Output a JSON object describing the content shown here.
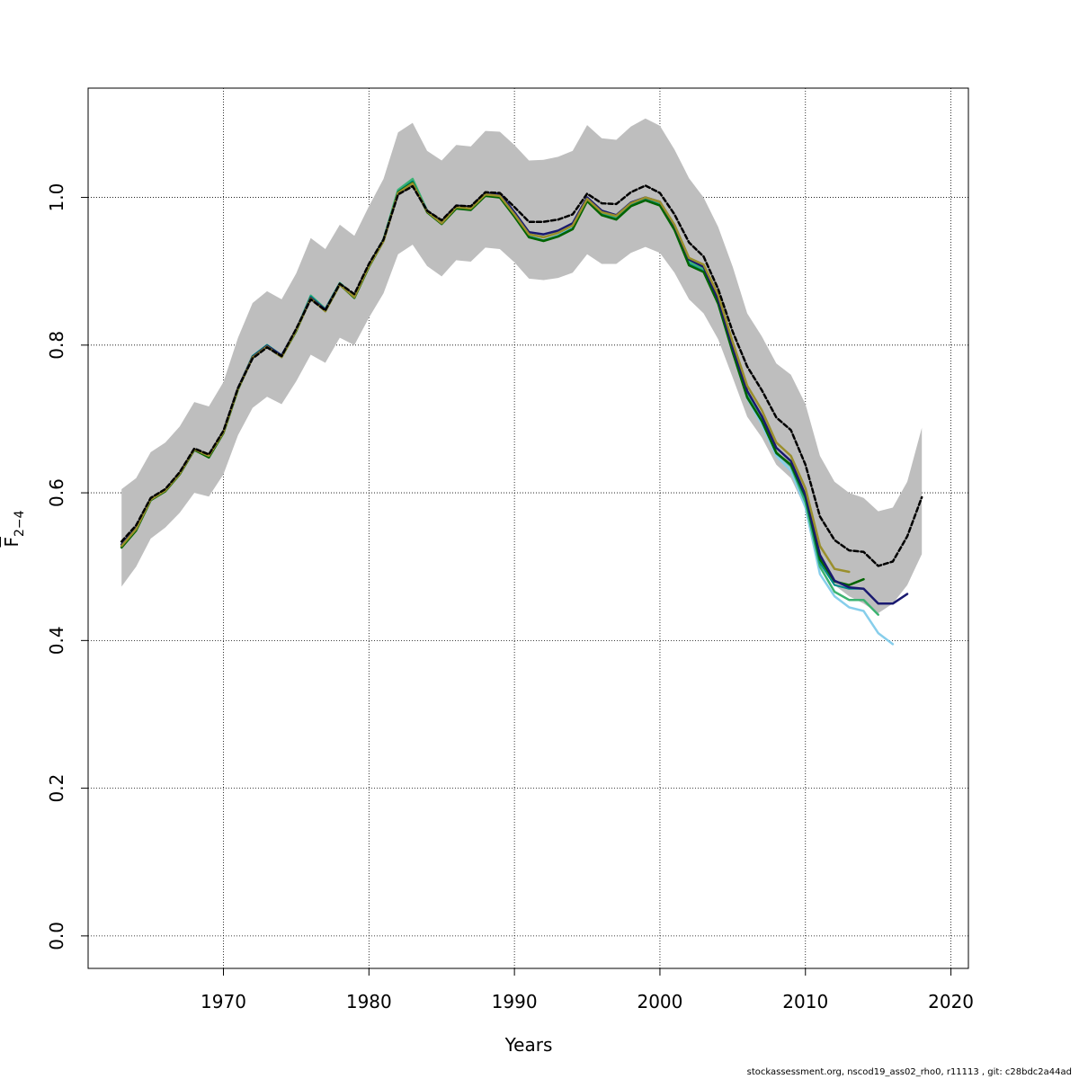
{
  "chart_data": {
    "type": "line",
    "title": "",
    "xlabel": "Years",
    "ylabel_main": "F",
    "ylabel_sub": "2−4",
    "xlim": [
      1960.7,
      2021.2
    ],
    "ylim": [
      -0.044,
      1.148
    ],
    "xticks": [
      1970,
      1980,
      1990,
      2000,
      2010,
      2020
    ],
    "yticks": [
      0.0,
      0.2,
      0.4,
      0.6,
      0.8,
      1.0
    ],
    "ytick_labels": [
      "0.0",
      "0.2",
      "0.4",
      "0.6",
      "0.8",
      "1.0"
    ],
    "grid": true,
    "legend": "none",
    "band": {
      "color": "#bebebe",
      "x": [
        1963,
        1964,
        1965,
        1966,
        1967,
        1968,
        1969,
        1970,
        1971,
        1972,
        1973,
        1974,
        1975,
        1976,
        1977,
        1978,
        1979,
        1980,
        1981,
        1982,
        1983,
        1984,
        1985,
        1986,
        1987,
        1988,
        1989,
        1990,
        1991,
        1992,
        1993,
        1994,
        1995,
        1996,
        1997,
        1998,
        1999,
        2000,
        2001,
        2002,
        2003,
        2004,
        2005,
        2006,
        2007,
        2008,
        2009,
        2010,
        2011,
        2012,
        2013,
        2014,
        2015,
        2016,
        2017,
        2018
      ],
      "upper": [
        0.605,
        0.62,
        0.655,
        0.668,
        0.69,
        0.723,
        0.717,
        0.75,
        0.81,
        0.857,
        0.873,
        0.862,
        0.897,
        0.945,
        0.93,
        0.963,
        0.948,
        0.988,
        1.025,
        1.088,
        1.101,
        1.063,
        1.05,
        1.071,
        1.069,
        1.09,
        1.089,
        1.071,
        1.05,
        1.051,
        1.055,
        1.063,
        1.098,
        1.08,
        1.078,
        1.096,
        1.107,
        1.097,
        1.065,
        1.026,
        1.0,
        0.96,
        0.906,
        0.843,
        0.812,
        0.775,
        0.76,
        0.72,
        0.65,
        0.615,
        0.6,
        0.593,
        0.575,
        0.58,
        0.615,
        0.688
      ],
      "lower": [
        0.473,
        0.5,
        0.538,
        0.553,
        0.573,
        0.6,
        0.595,
        0.625,
        0.678,
        0.715,
        0.73,
        0.72,
        0.751,
        0.787,
        0.776,
        0.81,
        0.8,
        0.837,
        0.87,
        0.923,
        0.936,
        0.907,
        0.893,
        0.915,
        0.913,
        0.932,
        0.93,
        0.912,
        0.89,
        0.888,
        0.891,
        0.898,
        0.923,
        0.91,
        0.91,
        0.925,
        0.933,
        0.925,
        0.898,
        0.862,
        0.843,
        0.808,
        0.756,
        0.703,
        0.675,
        0.638,
        0.62,
        0.578,
        0.51,
        0.475,
        0.46,
        0.45,
        0.437,
        0.45,
        0.475,
        0.517
      ]
    },
    "series": [
      {
        "color": "#87ceeb",
        "dashed": false,
        "width": 2.5,
        "x": [
          1963,
          1964,
          1965,
          1966,
          1967,
          1968,
          1969,
          1970,
          1971,
          1972,
          1973,
          1974,
          1975,
          1976,
          1977,
          1978,
          1979,
          1980,
          1981,
          1982,
          1983,
          1984,
          1985,
          1986,
          1987,
          1988,
          1989,
          1990,
          1991,
          1992,
          1993,
          1994,
          1995,
          1996,
          1997,
          1998,
          1999,
          2000,
          2001,
          2002,
          2003,
          2004,
          2005,
          2006,
          2007,
          2008,
          2009,
          2010,
          2011,
          2012,
          2013,
          2014,
          2015,
          2016
        ],
        "values": [
          0.527,
          0.55,
          0.591,
          0.603,
          0.626,
          0.659,
          0.65,
          0.682,
          0.741,
          0.785,
          0.8,
          0.786,
          0.82,
          0.867,
          0.849,
          0.884,
          0.867,
          0.908,
          0.943,
          1.01,
          1.025,
          0.982,
          0.966,
          0.988,
          0.986,
          1.005,
          1.002,
          0.976,
          0.949,
          0.946,
          0.951,
          0.961,
          0.996,
          0.978,
          0.972,
          0.99,
          0.998,
          0.991,
          0.957,
          0.91,
          0.9,
          0.856,
          0.79,
          0.728,
          0.693,
          0.65,
          0.63,
          0.58,
          0.49,
          0.46,
          0.445,
          0.44,
          0.41,
          0.395
        ]
      },
      {
        "color": "#3cb371",
        "dashed": false,
        "width": 2.5,
        "x": [
          1963,
          1964,
          1965,
          1966,
          1967,
          1968,
          1969,
          1970,
          1971,
          1972,
          1973,
          1974,
          1975,
          1976,
          1977,
          1978,
          1979,
          1980,
          1981,
          1982,
          1983,
          1984,
          1985,
          1986,
          1987,
          1988,
          1989,
          1990,
          1991,
          1992,
          1993,
          1994,
          1995,
          1996,
          1997,
          1998,
          1999,
          2000,
          2001,
          2002,
          2003,
          2004,
          2005,
          2006,
          2007,
          2008,
          2009,
          2010,
          2011,
          2012,
          2013,
          2014,
          2015
        ],
        "values": [
          0.527,
          0.55,
          0.591,
          0.603,
          0.626,
          0.659,
          0.65,
          0.682,
          0.741,
          0.785,
          0.8,
          0.786,
          0.82,
          0.867,
          0.849,
          0.884,
          0.867,
          0.908,
          0.943,
          1.01,
          1.025,
          0.982,
          0.966,
          0.988,
          0.986,
          1.005,
          1.002,
          0.977,
          0.95,
          0.946,
          0.952,
          0.962,
          0.998,
          0.979,
          0.973,
          0.991,
          0.999,
          0.993,
          0.96,
          0.913,
          0.903,
          0.86,
          0.793,
          0.732,
          0.698,
          0.655,
          0.636,
          0.587,
          0.5,
          0.466,
          0.455,
          0.455,
          0.435
        ]
      },
      {
        "color": "#008b8b",
        "dashed": false,
        "width": 2.0,
        "x": [
          1963,
          1964,
          1965,
          1966,
          1967,
          1968,
          1969,
          1970,
          1971,
          1972,
          1973,
          1974,
          1975,
          1976,
          1977,
          1978,
          1979,
          1980,
          1981,
          1982,
          1983,
          1984,
          1985,
          1986,
          1987,
          1988,
          1989,
          1990,
          1991,
          1992,
          1993,
          1994,
          1995,
          1996,
          1997,
          1998,
          1999,
          2000,
          2001,
          2002,
          2003,
          2004,
          2005,
          2006,
          2007,
          2008,
          2009,
          2010,
          2011,
          2012,
          2013,
          2014
        ],
        "values": [
          0.527,
          0.55,
          0.591,
          0.603,
          0.626,
          0.659,
          0.649,
          0.682,
          0.741,
          0.785,
          0.8,
          0.786,
          0.82,
          0.866,
          0.848,
          0.883,
          0.866,
          0.907,
          0.942,
          1.008,
          1.022,
          0.98,
          0.965,
          0.987,
          0.985,
          1.004,
          1.001,
          0.975,
          0.947,
          0.942,
          0.948,
          0.958,
          0.996,
          0.977,
          0.971,
          0.989,
          0.997,
          0.99,
          0.957,
          0.91,
          0.9,
          0.857,
          0.791,
          0.73,
          0.697,
          0.653,
          0.637,
          0.592,
          0.505,
          0.475,
          0.47,
          0.47
        ]
      },
      {
        "color": "#006400",
        "dashed": false,
        "width": 2.5,
        "x": [
          1963,
          1964,
          1965,
          1966,
          1967,
          1968,
          1969,
          1970,
          1971,
          1972,
          1973,
          1974,
          1975,
          1976,
          1977,
          1978,
          1979,
          1980,
          1981,
          1982,
          1983,
          1984,
          1985,
          1986,
          1987,
          1988,
          1989,
          1990,
          1991,
          1992,
          1993,
          1994,
          1995,
          1996,
          1997,
          1998,
          1999,
          2000,
          2001,
          2002,
          2003,
          2004,
          2005,
          2006,
          2007,
          2008,
          2009,
          2010,
          2011,
          2012,
          2013,
          2014
        ],
        "values": [
          0.526,
          0.549,
          0.59,
          0.602,
          0.625,
          0.658,
          0.648,
          0.681,
          0.74,
          0.784,
          0.798,
          0.784,
          0.819,
          0.864,
          0.846,
          0.882,
          0.864,
          0.906,
          0.941,
          1.007,
          1.02,
          0.98,
          0.964,
          0.985,
          0.983,
          1.002,
          1.0,
          0.974,
          0.946,
          0.941,
          0.947,
          0.957,
          0.995,
          0.976,
          0.97,
          0.988,
          0.996,
          0.989,
          0.956,
          0.908,
          0.899,
          0.856,
          0.79,
          0.729,
          0.697,
          0.654,
          0.638,
          0.595,
          0.51,
          0.48,
          0.475,
          0.483
        ]
      },
      {
        "color": "#191970",
        "dashed": false,
        "width": 2.5,
        "x": [
          1963,
          1964,
          1965,
          1966,
          1967,
          1968,
          1969,
          1970,
          1971,
          1972,
          1973,
          1974,
          1975,
          1976,
          1977,
          1978,
          1979,
          1980,
          1981,
          1982,
          1983,
          1984,
          1985,
          1986,
          1987,
          1988,
          1989,
          1990,
          1991,
          1992,
          1993,
          1994,
          1995,
          1996,
          1997,
          1998,
          1999,
          2000,
          2001,
          2002,
          2003,
          2004,
          2005,
          2006,
          2007,
          2008,
          2009,
          2010,
          2011,
          2012,
          2013,
          2014,
          2015,
          2016,
          2017
        ],
        "values": [
          0.53,
          0.553,
          0.592,
          0.604,
          0.627,
          0.659,
          0.651,
          0.683,
          0.742,
          0.784,
          0.799,
          0.786,
          0.821,
          0.864,
          0.848,
          0.883,
          0.867,
          0.908,
          0.942,
          1.005,
          1.018,
          0.982,
          0.967,
          0.989,
          0.987,
          1.006,
          1.005,
          0.98,
          0.953,
          0.95,
          0.955,
          0.965,
          1.0,
          0.982,
          0.976,
          0.993,
          1.0,
          0.994,
          0.962,
          0.916,
          0.906,
          0.862,
          0.797,
          0.738,
          0.704,
          0.661,
          0.643,
          0.597,
          0.516,
          0.481,
          0.472,
          0.47,
          0.45,
          0.45,
          0.463
        ]
      },
      {
        "color": "#9a8f2c",
        "dashed": false,
        "width": 2.5,
        "x": [
          1963,
          1964,
          1965,
          1966,
          1967,
          1968,
          1969,
          1970,
          1971,
          1972,
          1973,
          1974,
          1975,
          1976,
          1977,
          1978,
          1979,
          1980,
          1981,
          1982,
          1983,
          1984,
          1985,
          1986,
          1987,
          1988,
          1989,
          1990,
          1991,
          1992,
          1993,
          1994,
          1995,
          1996,
          1997,
          1998,
          1999,
          2000,
          2001,
          2002,
          2003,
          2004,
          2005,
          2006,
          2007,
          2008,
          2009,
          2010,
          2011,
          2012,
          2013
        ],
        "values": [
          0.528,
          0.551,
          0.591,
          0.603,
          0.626,
          0.659,
          0.65,
          0.682,
          0.741,
          0.783,
          0.798,
          0.784,
          0.82,
          0.863,
          0.846,
          0.882,
          0.865,
          0.907,
          0.941,
          1.006,
          1.019,
          0.981,
          0.965,
          0.987,
          0.985,
          1.004,
          1.002,
          0.977,
          0.95,
          0.946,
          0.952,
          0.962,
          0.998,
          0.98,
          0.975,
          0.992,
          1.0,
          0.994,
          0.963,
          0.918,
          0.909,
          0.868,
          0.804,
          0.745,
          0.712,
          0.668,
          0.65,
          0.606,
          0.528,
          0.497,
          0.493
        ]
      },
      {
        "color": "#000000",
        "dashed": true,
        "width": 2.5,
        "x": [
          1963,
          1964,
          1965,
          1966,
          1967,
          1968,
          1969,
          1970,
          1971,
          1972,
          1973,
          1974,
          1975,
          1976,
          1977,
          1978,
          1979,
          1980,
          1981,
          1982,
          1983,
          1984,
          1985,
          1986,
          1987,
          1988,
          1989,
          1990,
          1991,
          1992,
          1993,
          1994,
          1995,
          1996,
          1997,
          1998,
          1999,
          2000,
          2001,
          2002,
          2003,
          2004,
          2005,
          2006,
          2007,
          2008,
          2009,
          2010,
          2011,
          2012,
          2013,
          2014,
          2015,
          2016,
          2017,
          2018
        ],
        "values": [
          0.534,
          0.556,
          0.593,
          0.605,
          0.628,
          0.66,
          0.652,
          0.684,
          0.742,
          0.782,
          0.797,
          0.785,
          0.822,
          0.862,
          0.847,
          0.883,
          0.869,
          0.91,
          0.943,
          1.004,
          1.015,
          0.982,
          0.969,
          0.989,
          0.988,
          1.007,
          1.006,
          0.987,
          0.967,
          0.967,
          0.97,
          0.977,
          1.005,
          0.992,
          0.991,
          1.007,
          1.016,
          1.006,
          0.977,
          0.939,
          0.92,
          0.876,
          0.818,
          0.771,
          0.739,
          0.702,
          0.685,
          0.638,
          0.568,
          0.536,
          0.522,
          0.52,
          0.501,
          0.507,
          0.541,
          0.594
        ]
      }
    ]
  },
  "footer_text": "stockassessment.org, nscod19_ass02_rho0, r11113 , git: c28bdc2a44ad"
}
